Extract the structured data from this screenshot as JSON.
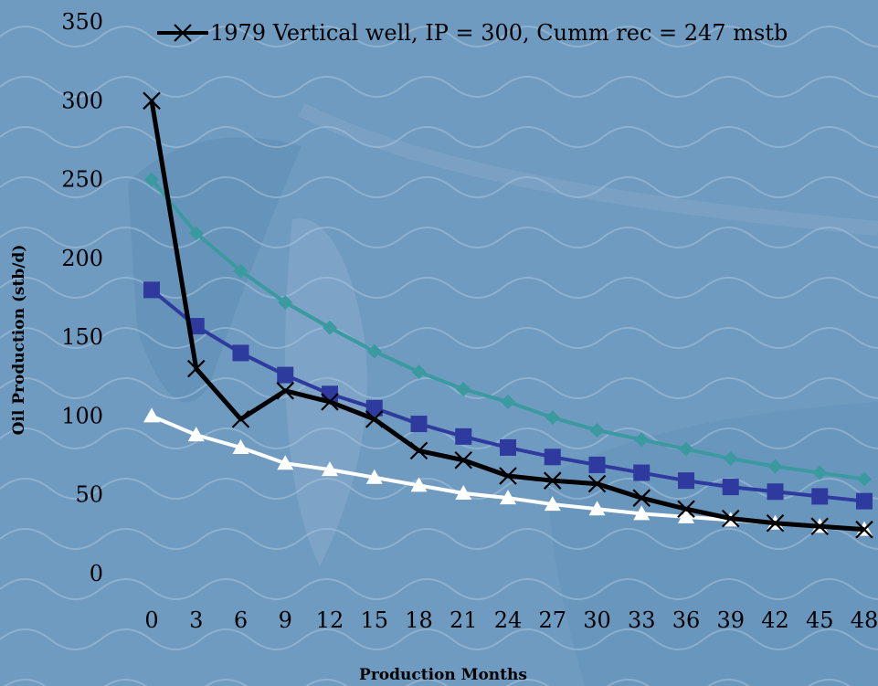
{
  "chart_data": {
    "type": "line",
    "title": "",
    "xlabel": "Production Months",
    "ylabel": "Oil Production (stb/d)",
    "ylim": [
      0,
      350
    ],
    "yticks": [
      0,
      50,
      100,
      150,
      200,
      250,
      300,
      350
    ],
    "x": [
      0,
      3,
      6,
      9,
      12,
      15,
      18,
      21,
      24,
      27,
      30,
      33,
      36,
      39,
      42,
      45,
      48
    ],
    "grid": false,
    "legend_position": "top-right",
    "series": [
      {
        "values": [
          250,
          216,
          192,
          172,
          156,
          141,
          128,
          117,
          109,
          99,
          91,
          85,
          79,
          73,
          68,
          64,
          60
        ],
        "color": "#3a9aa0",
        "marker": "diamond"
      },
      {
        "values": [
          180,
          157,
          140,
          126,
          114,
          105,
          95,
          87,
          80,
          74,
          69,
          64,
          59,
          55,
          52,
          49,
          46
        ],
        "color": "#2f3a9e",
        "marker": "square"
      },
      {
        "values": [
          100,
          88,
          80,
          70,
          66,
          61,
          56,
          51,
          48,
          44,
          41,
          38,
          36,
          34,
          32,
          30,
          28
        ],
        "color": "#ffffff",
        "marker": "triangle"
      },
      {
        "name": "1979 Vertical well, IP = 300, Cumm rec = 247 mstb",
        "values": [
          300,
          130,
          98,
          116,
          109,
          98,
          78,
          72,
          62,
          59,
          57,
          48,
          41,
          35,
          32,
          30,
          28
        ],
        "color": "#000000",
        "marker": "x"
      }
    ]
  }
}
